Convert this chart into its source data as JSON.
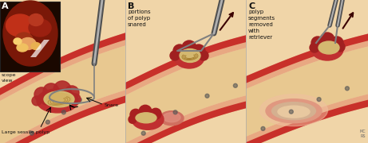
{
  "fig_width": 4.61,
  "fig_height": 1.8,
  "dpi": 100,
  "bg_color": "#f0d5a8",
  "panel_A_label": "A",
  "panel_B_label": "B",
  "panel_C_label": "C",
  "text_scope": "scope\nview",
  "text_snare": "Snare",
  "text_polyp": "Large sessile polyp",
  "text_B": "portions\nof polyp\nsnared",
  "text_C": "polyp\nsegments\nremoved\nwith\nretriever",
  "wall_red": "#c8302a",
  "wall_pink": "#e8a882",
  "wall_salmon": "#d4806a",
  "lumen_tan": "#e8c890",
  "polyp_red": "#c03030",
  "polyp_bumpy": "#a02020",
  "polyp_cream": "#d4b870",
  "polyp_tan": "#c8a850",
  "wound_pink": "#e09090",
  "tool_dark": "#505050",
  "tool_mid": "#808080",
  "tool_light": "#b0b0b0",
  "photo_bg": "#1a0800",
  "dot_color": "#555555",
  "text_color": "#111111",
  "watermark": "MC\nRS"
}
